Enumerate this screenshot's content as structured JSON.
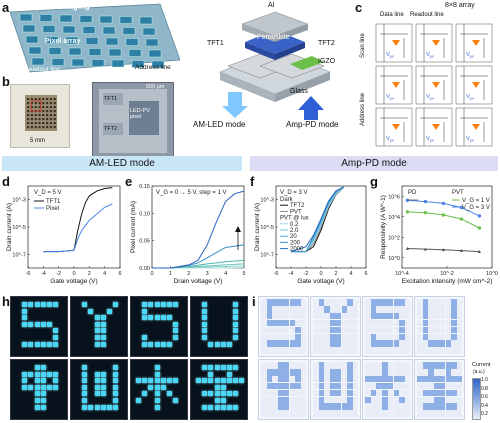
{
  "panel_labels": {
    "a": "a",
    "b": "b",
    "c": "c",
    "d": "d",
    "e": "e",
    "f": "f",
    "g": "g",
    "h": "h",
    "i": "i"
  },
  "panel_a": {
    "title": "Display and imaging",
    "pixel_array": "Pixel array",
    "readout_line": "Readout line",
    "address_line": "Address line",
    "al": "Al",
    "perovskite": "Perovskite",
    "tft1": "TFT1",
    "tft2": "TFT2",
    "igzo": "IGZO",
    "glass": "Glass",
    "am_led_mode": "AM-LED mode",
    "amp_pd_mode": "Amp-PD mode"
  },
  "panel_b": {
    "scale_large": "5 mm",
    "scale_small": "500 μm",
    "tft1": "TFT1",
    "tft2": "TFT2",
    "led_pv": "LED-PV pixel",
    "circuit_label": "Circuit"
  },
  "panel_c": {
    "array": "8×8 array",
    "data_line": "Data line",
    "readout_line": "Readout line",
    "scan_line": "Scan line",
    "address_line": "Address line",
    "vpv": "V",
    "vpv_sub": "pv"
  },
  "banners": {
    "am_led": "AM-LED mode",
    "amp_pd": "Amp-PD mode"
  },
  "colors": {
    "banner_left": "#c9e6f7",
    "banner_right": "#dcdcf4",
    "black_line": "#111111",
    "blue_line": "#4a86e8"
  },
  "chart_data": [
    {
      "panel": "d",
      "type": "line",
      "annotation": "V_D = 5 V",
      "xlabel": "Gate voltage (V)",
      "ylabel": "Drain current (A)",
      "xlim": [
        -6,
        6
      ],
      "xticks": [
        "-6",
        "-4",
        "-2",
        "0",
        "2",
        "4",
        "6"
      ],
      "yscale": "log",
      "ylim": [
        1e-08,
        0.001
      ],
      "yticks": [
        "10^-7",
        "10^-5",
        "10^-3"
      ],
      "series": [
        {
          "name": "TFT1",
          "color": "#111111",
          "x": [
            -4,
            -2,
            0,
            0.5,
            1,
            1.5,
            2,
            3,
            4,
            5
          ],
          "y": [
            1e-07,
            1e-07,
            1.2e-07,
            2e-06,
            2e-05,
            0.0001,
            0.00025,
            0.0005,
            0.0007,
            0.0008
          ]
        },
        {
          "name": "Pixel",
          "color": "#4a86e8",
          "x": [
            -4,
            -2,
            0,
            0.5,
            1,
            2,
            3,
            4,
            5
          ],
          "y": [
            1e-07,
            1e-07,
            1.2e-07,
            6e-07,
            2e-06,
            8e-06,
            2e-05,
            5e-05,
            8e-05
          ]
        }
      ]
    },
    {
      "panel": "e",
      "type": "line",
      "annotation": "V_G = 0 → 5 V, step = 1 V",
      "xlabel": "Drain voltage (V)",
      "ylabel": "Pixel current (mA)",
      "xlim": [
        0,
        5
      ],
      "xticks": [
        "0",
        "1",
        "2",
        "3",
        "4",
        "5"
      ],
      "ylim": [
        0,
        0.16
      ],
      "yticks": [
        "0.00",
        "0.05",
        "0.10",
        "0.15"
      ],
      "series": [
        {
          "name": "0 V",
          "color": "#b8dfe8",
          "x": [
            0,
            1,
            2,
            3,
            4,
            5
          ],
          "y": [
            0,
            0,
            0,
            0,
            0,
            0.001
          ]
        },
        {
          "name": "1 V",
          "color": "#8fd3c8",
          "x": [
            0,
            1,
            2,
            3,
            4,
            5
          ],
          "y": [
            0,
            0,
            0.001,
            0.002,
            0.003,
            0.004
          ]
        },
        {
          "name": "2 V",
          "color": "#6cc7b7",
          "x": [
            0,
            1,
            2,
            3,
            4,
            5
          ],
          "y": [
            0,
            0,
            0.002,
            0.004,
            0.006,
            0.008
          ]
        },
        {
          "name": "3 V",
          "color": "#4fb6b0",
          "x": [
            0,
            1,
            2,
            3,
            4,
            5
          ],
          "y": [
            0,
            0,
            0.003,
            0.008,
            0.012,
            0.015
          ]
        },
        {
          "name": "4 V",
          "color": "#3b8fc9",
          "x": [
            0,
            1,
            2,
            2.5,
            3,
            3.5,
            4,
            5
          ],
          "y": [
            0,
            0,
            0.005,
            0.01,
            0.02,
            0.03,
            0.04,
            0.045
          ]
        },
        {
          "name": "5 V",
          "color": "#2b62c2",
          "x": [
            0,
            1,
            2,
            2.5,
            3,
            3.5,
            4,
            4.5,
            5
          ],
          "y": [
            0,
            0,
            0.006,
            0.015,
            0.045,
            0.09,
            0.13,
            0.145,
            0.15
          ]
        }
      ]
    },
    {
      "panel": "f",
      "type": "line",
      "annotation": "V_D = 3 V",
      "xlabel": "Gate voltage (V)",
      "ylabel": "Drain current (A)",
      "xlim": [
        -6,
        6
      ],
      "xticks": [
        "-6",
        "-4",
        "-2",
        "0",
        "2",
        "4",
        "6"
      ],
      "yscale": "log",
      "ylim": [
        1e-08,
        0.001
      ],
      "yticks": [
        "10^-7",
        "10^-5",
        "10^-3"
      ],
      "legend": [
        "Dark",
        "TFT2",
        "PVT",
        "PVT @ lux",
        "0.2",
        "2.0",
        "20",
        "200",
        "2000"
      ],
      "series": [
        {
          "name": "TFT2",
          "color": "#111111",
          "x": [
            -4,
            -2,
            -1,
            0,
            1,
            2,
            3
          ],
          "y": [
            1e-07,
            1e-07,
            2e-07,
            2e-06,
            4e-05,
            0.0003,
            0.0008
          ]
        },
        {
          "name": "PVT",
          "color": "#888888",
          "x": [
            -4,
            -2,
            -1,
            0,
            1,
            2,
            3
          ],
          "y": [
            1e-07,
            1e-07,
            3e-07,
            3e-06,
            5e-05,
            0.0003,
            0.0008
          ]
        },
        {
          "name": "0.2",
          "color": "#9fd8e8",
          "x": [
            -4,
            -2,
            -1,
            0,
            1,
            2,
            3
          ],
          "y": [
            1e-07,
            1e-07,
            4e-07,
            4e-06,
            6e-05,
            0.00035,
            0.0008
          ]
        },
        {
          "name": "2.0",
          "color": "#78c8e0",
          "x": [
            -4,
            -2,
            -1,
            0,
            1,
            2,
            3
          ],
          "y": [
            1e-07,
            1e-07,
            5e-07,
            5e-06,
            7e-05,
            0.0004,
            0.00085
          ]
        },
        {
          "name": "20",
          "color": "#56b4d8",
          "x": [
            -4,
            -2,
            -1,
            0,
            1,
            2,
            3
          ],
          "y": [
            1e-07,
            1e-07,
            6e-07,
            6e-06,
            8e-05,
            0.0004,
            0.00085
          ]
        },
        {
          "name": "200",
          "color": "#3b92cc",
          "x": [
            -4,
            -2,
            -1,
            0,
            1,
            2,
            3
          ],
          "y": [
            1e-07,
            1e-07,
            8e-07,
            8e-06,
            0.0001,
            0.00045,
            0.0009
          ]
        },
        {
          "name": "2000",
          "color": "#2a6cc0",
          "x": [
            -4,
            -2,
            -1,
            0,
            1,
            2,
            3
          ],
          "y": [
            1e-07,
            2e-07,
            1e-06,
            1e-05,
            0.00012,
            0.0005,
            0.0009
          ]
        }
      ]
    },
    {
      "panel": "g",
      "type": "line",
      "xlabel": "Excitation intensity (mW cm^-2)",
      "ylabel": "Responsivity (A W^-1)",
      "xscale": "log",
      "xlim": [
        0.0001,
        10
      ],
      "xticks": [
        "10^-4",
        "10^-2",
        "10^0"
      ],
      "yscale": "log",
      "ylim": [
        0.01,
        1000000.0
      ],
      "yticks": [
        "10^0",
        "10^2",
        "10^4",
        "10^6"
      ],
      "legend_groups": [
        "PD",
        "PVT"
      ],
      "series": [
        {
          "name": "PD",
          "color": "#555555",
          "x": [
            0.0002,
            0.002,
            0.02,
            0.2,
            2
          ],
          "y": [
            0.8,
            0.7,
            0.6,
            0.5,
            0.4
          ]
        },
        {
          "name": "V_G = 1 V",
          "color": "#6cc04a",
          "x": [
            0.0002,
            0.002,
            0.02,
            0.2,
            2
          ],
          "y": [
            3000,
            2500,
            1500,
            600,
            80
          ]
        },
        {
          "name": "V_G = 3 V",
          "color": "#4a86e8",
          "x": [
            0.0002,
            0.002,
            0.02,
            0.2,
            2
          ],
          "y": [
            40000,
            30000,
            20000,
            8000,
            1200
          ]
        }
      ]
    }
  ],
  "panel_i": {
    "colorbar_title": "Current",
    "colorbar_unit": "(a.u.)",
    "colorbar_ticks": [
      "1.0",
      "0.8",
      "0.6",
      "0.4",
      "0.2"
    ]
  }
}
